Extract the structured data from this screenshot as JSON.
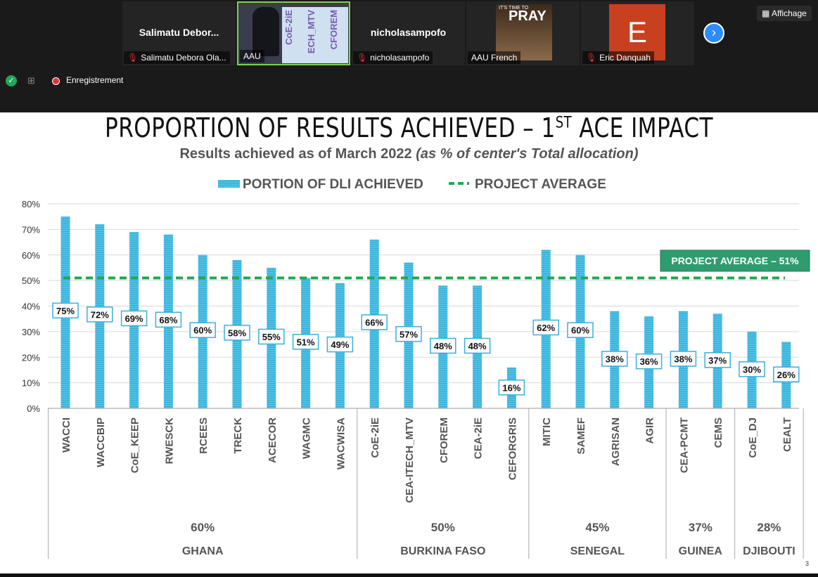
{
  "zoom": {
    "view_button": "Affichage",
    "recording_label": "Enregistrement",
    "participants": [
      {
        "name": "Salimatu  Debor...",
        "label": "Salimatu Debora Ola...",
        "muted": true
      },
      {
        "name": "",
        "label": "AAU",
        "muted": false,
        "video_text": [
          "CoE-2iE",
          "ECH_MTV",
          "CFOREM"
        ]
      },
      {
        "name": "nicholasampofo",
        "label": "nicholasampofo",
        "muted": true
      },
      {
        "name": "",
        "label": "AAU French",
        "muted": false,
        "image_text": [
          "IT'S TIME TO",
          "PRAY"
        ]
      },
      {
        "name": "",
        "label": "Eric Danquah",
        "muted": true,
        "avatar_letter": "E"
      }
    ]
  },
  "slide": {
    "title_main": "PROPORTION OF RESULTS ACHIEVED – 1",
    "title_sup": "ST",
    "title_tail": " ACE IMPACT",
    "subtitle_main": "Results achieved as of March 2022 ",
    "subtitle_italic": "(as % of center's Total allocation)",
    "page_number": "3"
  },
  "chart_data": {
    "type": "bar",
    "legend": [
      {
        "label": "PORTION OF DLI ACHIEVED",
        "style": "bar",
        "color": "#4dc3e8"
      },
      {
        "label": "PROJECT AVERAGE",
        "style": "dashed-line",
        "color": "#1fa850"
      }
    ],
    "legend_position": "top-center",
    "y_ticks": [
      "0%",
      "10%",
      "20%",
      "30%",
      "40%",
      "50%",
      "60%",
      "70%",
      "80%"
    ],
    "ylim": [
      0,
      80
    ],
    "grid": true,
    "categories": [
      "WACCI",
      "WACCBIP",
      "CoE_KEEP",
      "RWESCK",
      "RCEES",
      "TRECK",
      "ACECOR",
      "WAGMC",
      "WACWISA",
      "CoE-2iE",
      "CEA-ITECH_MTV",
      "CFOREM",
      "CEA-2iE",
      "CEFORGRIS",
      "MITIC",
      "SAMEF",
      "AGRISAN",
      "AGIR",
      "CEA-PCMT",
      "CEMS",
      "CoE_DJ",
      "CEALT"
    ],
    "values": [
      75,
      72,
      69,
      68,
      60,
      58,
      55,
      51,
      49,
      66,
      57,
      48,
      48,
      16,
      62,
      60,
      38,
      36,
      38,
      37,
      30,
      26
    ],
    "data_labels": [
      "75%",
      "72%",
      "69%",
      "68%",
      "60%",
      "58%",
      "55%",
      "51%",
      "49%",
      "66%",
      "57%",
      "48%",
      "48%",
      "16%",
      "62%",
      "60%",
      "38%",
      "36%",
      "38%",
      "37%",
      "30%",
      "26%"
    ],
    "project_average": 51,
    "project_average_label": "PROJECT AVERAGE – 51%",
    "groups": [
      {
        "country": "GHANA",
        "average": "60%",
        "start": 0,
        "end": 8
      },
      {
        "country": "BURKINA FASO",
        "average": "50%",
        "start": 9,
        "end": 13
      },
      {
        "country": "SENEGAL",
        "average": "45%",
        "start": 14,
        "end": 17
      },
      {
        "country": "GUINEA",
        "average": "37%",
        "start": 18,
        "end": 19
      },
      {
        "country": "DJIBOUTI",
        "average": "28%",
        "start": 20,
        "end": 21
      }
    ]
  }
}
